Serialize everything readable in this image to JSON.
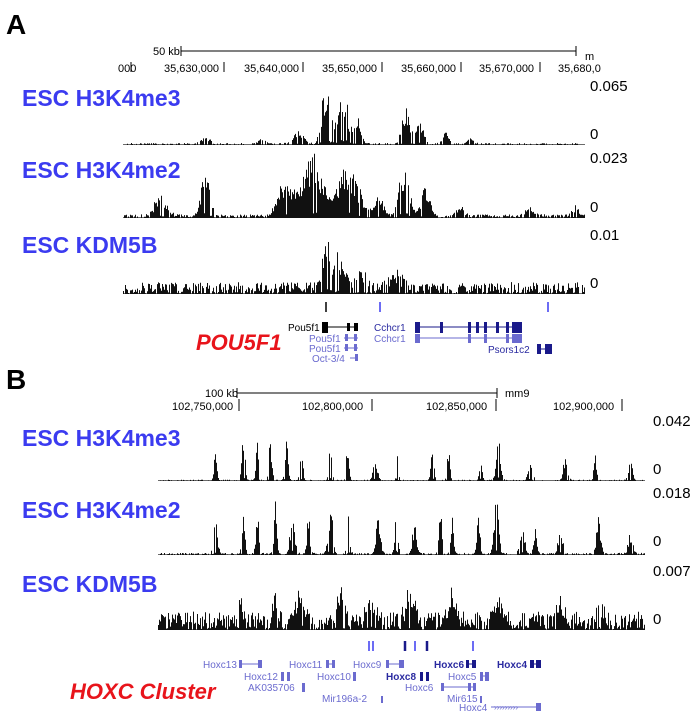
{
  "panelA": {
    "letter": "A",
    "scale": {
      "size_label": "50 kb",
      "assembly": "m"
    },
    "coords": [
      "000",
      "35,630,000",
      "35,640,000",
      "35,650,000",
      "35,660,000",
      "35,670,000",
      "35,680,0"
    ],
    "tracks": [
      {
        "label": "ESC H3K4me3",
        "max": "0.065",
        "min": "0"
      },
      {
        "label": "ESC H3K4me2",
        "max": "0.023",
        "min": "0"
      },
      {
        "label": "ESC KDM5B",
        "max": "0.01",
        "min": "0"
      }
    ],
    "locus": "POU5F1",
    "genes": [
      "Pou5f1",
      "Pou5f1",
      "Pou5f1",
      "Oct-3/4",
      "Cchcr1",
      "Cchcr1",
      "Psors1c2"
    ]
  },
  "panelB": {
    "letter": "B",
    "scale": {
      "size_label": "100 kb",
      "assembly": "mm9"
    },
    "coords": [
      "102,750,000",
      "102,800,000",
      "102,850,000",
      "102,900,000"
    ],
    "tracks": [
      {
        "label": "ESC H3K4me3",
        "max": "0.042",
        "min": "0"
      },
      {
        "label": "ESC H3K4me2",
        "max": "0.018",
        "min": "0"
      },
      {
        "label": "ESC KDM5B",
        "max": "0.007",
        "min": "0"
      }
    ],
    "locus": "HOXC Cluster",
    "genes": [
      "Hoxc13",
      "Hoxc12",
      "AK035706",
      "Hoxc11",
      "Hoxc10",
      "Mir196a-2",
      "Hoxc9",
      "Hoxc8",
      "Hoxc6",
      "Hoxc6",
      "Hoxc5",
      "Mir615",
      "Hoxc4",
      "Hoxc4"
    ]
  },
  "colors": {
    "track_label": "#3b3bf0",
    "locus_label": "#e8141b",
    "gene": "#2a2aa0",
    "signal": "#111111"
  }
}
